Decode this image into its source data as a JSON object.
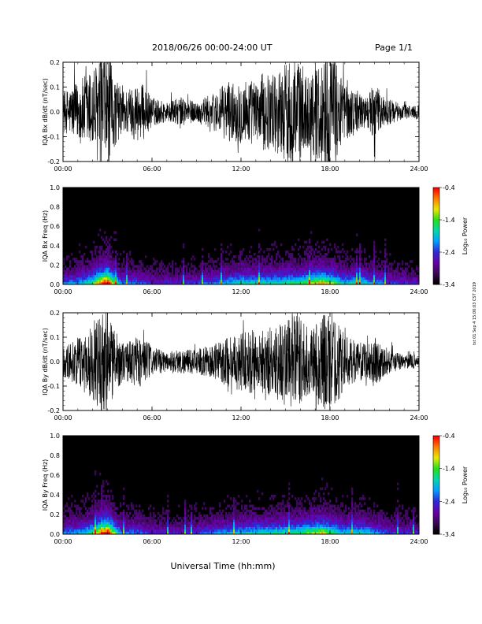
{
  "header": {
    "title": "2018/06/26  00:00-24:00 UT",
    "page": "Page 1/1"
  },
  "footer": {
    "xlabel": "Universal Time (hh:mm)",
    "side_stamp": "tst 01 Sep 4 15:00:03 CST 2019"
  },
  "colors": {
    "trace": "#000000",
    "colormap": [
      "#000000",
      "#3a0a55",
      "#6a00a8",
      "#2a2ad8",
      "#00a0ff",
      "#00d8b0",
      "#20e020",
      "#e8e800",
      "#ff8000",
      "#ff0000"
    ]
  },
  "chart_data": [
    {
      "type": "line",
      "ylabel": "IQA Bx dB/dt (nT/sec)",
      "xlim": [
        0,
        24
      ],
      "ylim": [
        -0.2,
        0.2
      ],
      "yticks": [
        "0.2",
        "0.1",
        "0.0",
        "-0.1",
        "-0.2"
      ],
      "xticks": [
        "00:00",
        "06:00",
        "12:00",
        "18:00",
        "24:00"
      ],
      "envelope_x_hours": [
        0,
        0.5,
        1,
        1.5,
        2,
        2.5,
        3,
        3.5,
        4,
        4.5,
        5,
        5.5,
        6,
        6.5,
        7,
        7.5,
        8,
        8.5,
        9,
        9.5,
        10,
        10.5,
        11,
        11.5,
        12,
        12.5,
        13,
        13.5,
        14,
        14.5,
        15,
        15.5,
        16,
        16.5,
        17,
        17.5,
        18,
        18.5,
        19,
        19.5,
        20,
        20.5,
        21,
        21.5,
        22,
        22.5,
        23,
        23.5,
        24
      ],
      "envelope_amplitude": [
        0.08,
        0.1,
        0.12,
        0.15,
        0.18,
        0.22,
        0.25,
        0.14,
        0.09,
        0.1,
        0.12,
        0.11,
        0.06,
        0.05,
        0.04,
        0.05,
        0.06,
        0.05,
        0.04,
        0.06,
        0.07,
        0.09,
        0.12,
        0.12,
        0.13,
        0.14,
        0.12,
        0.16,
        0.15,
        0.17,
        0.2,
        0.25,
        0.2,
        0.15,
        0.2,
        0.22,
        0.25,
        0.19,
        0.12,
        0.1,
        0.08,
        0.06,
        0.12,
        0.07,
        0.05,
        0.04,
        0.03,
        0.03,
        0.03
      ]
    },
    {
      "type": "heatmap",
      "ylabel": "IQA Bx Freq (Hz)",
      "xlim": [
        0,
        24
      ],
      "ylim": [
        0,
        1
      ],
      "yticks": [
        "1.0",
        "0.8",
        "0.6",
        "0.4",
        "0.2",
        "0.0"
      ],
      "xticks": [
        "00:00",
        "06:00",
        "12:00",
        "18:00",
        "24:00"
      ],
      "colorbar": {
        "label": "Log₁₀ Power",
        "range": [
          -3.4,
          -0.4
        ],
        "ticks": [
          "-0.4",
          "-1.4",
          "-2.4",
          "-3.4"
        ]
      },
      "activity_x_hours": [
        0,
        1,
        2,
        2.5,
        3,
        3.5,
        4,
        5,
        6,
        8,
        10,
        12,
        14,
        16,
        17.5,
        18,
        19,
        20,
        21,
        22,
        24
      ],
      "activity_level": [
        0.35,
        0.4,
        0.55,
        0.8,
        1.0,
        0.6,
        0.35,
        0.35,
        0.25,
        0.25,
        0.35,
        0.5,
        0.5,
        0.55,
        0.75,
        0.65,
        0.45,
        0.5,
        0.4,
        0.3,
        0.25
      ]
    },
    {
      "type": "line",
      "ylabel": "IQA By dB/dt (nT/sec)",
      "xlim": [
        0,
        24
      ],
      "ylim": [
        -0.2,
        0.2
      ],
      "yticks": [
        "0.2",
        "0.1",
        "0.0",
        "-0.1",
        "-0.2"
      ],
      "xticks": [
        "00:00",
        "06:00",
        "12:00",
        "18:00",
        "24:00"
      ],
      "envelope_x_hours": [
        0,
        0.5,
        1,
        1.5,
        2,
        2.5,
        3,
        3.5,
        4,
        4.5,
        5,
        5.5,
        6,
        6.5,
        7,
        7.5,
        8,
        8.5,
        9,
        9.5,
        10,
        10.5,
        11,
        11.5,
        12,
        12.5,
        13,
        13.5,
        14,
        14.5,
        15,
        15.5,
        16,
        16.5,
        17,
        17.5,
        18,
        18.5,
        19,
        19.5,
        20,
        20.5,
        21,
        21.5,
        22,
        22.5,
        23,
        23.5,
        24
      ],
      "envelope_amplitude": [
        0.06,
        0.08,
        0.1,
        0.13,
        0.16,
        0.2,
        0.24,
        0.13,
        0.08,
        0.09,
        0.11,
        0.1,
        0.06,
        0.05,
        0.04,
        0.05,
        0.05,
        0.05,
        0.05,
        0.06,
        0.07,
        0.08,
        0.1,
        0.11,
        0.12,
        0.13,
        0.13,
        0.14,
        0.15,
        0.16,
        0.18,
        0.2,
        0.18,
        0.14,
        0.17,
        0.2,
        0.22,
        0.17,
        0.11,
        0.09,
        0.08,
        0.07,
        0.11,
        0.07,
        0.05,
        0.04,
        0.03,
        0.03,
        0.03
      ]
    },
    {
      "type": "heatmap",
      "ylabel": "IQA By Freq (Hz)",
      "xlim": [
        0,
        24
      ],
      "ylim": [
        0,
        1
      ],
      "yticks": [
        "1.0",
        "0.8",
        "0.6",
        "0.4",
        "0.2",
        "0.0"
      ],
      "xticks": [
        "00:00",
        "06:00",
        "12:00",
        "18:00",
        "24:00"
      ],
      "colorbar": {
        "label": "Log₁₀ Power",
        "range": [
          -3.4,
          -0.4
        ],
        "ticks": [
          "-0.4",
          "-1.4",
          "-2.4",
          "-3.4"
        ]
      },
      "activity_x_hours": [
        0,
        1,
        2,
        2.5,
        3,
        3.5,
        4,
        5,
        6,
        8,
        10,
        12,
        14,
        16,
        17.5,
        18,
        19,
        20,
        21,
        22,
        24
      ],
      "activity_level": [
        0.35,
        0.4,
        0.55,
        0.8,
        1.0,
        0.6,
        0.35,
        0.35,
        0.25,
        0.25,
        0.35,
        0.45,
        0.5,
        0.55,
        0.7,
        0.6,
        0.45,
        0.5,
        0.4,
        0.3,
        0.25
      ]
    }
  ]
}
